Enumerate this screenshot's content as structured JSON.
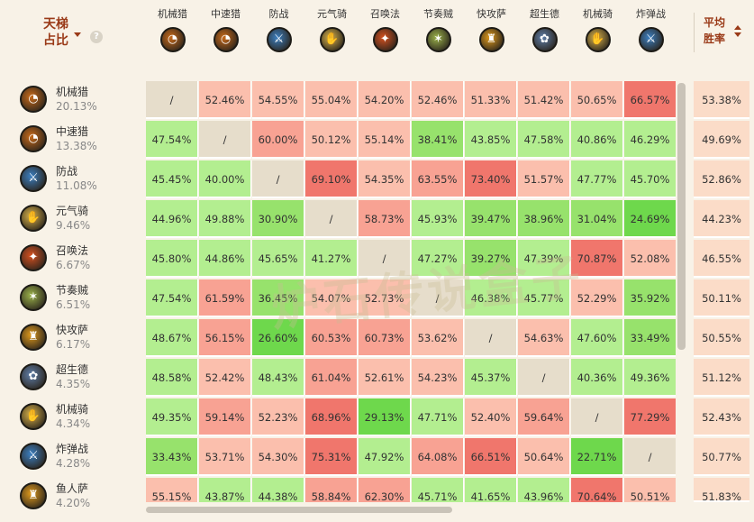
{
  "header": {
    "corner_title": "天梯占比",
    "help_symbol": "?",
    "avg_title": "平均胜率"
  },
  "decks": [
    {
      "name": "机械猎",
      "icon": "hunter-icon",
      "color": "#c86a1a",
      "glyph": "◔"
    },
    {
      "name": "中速猎",
      "icon": "hunter-icon",
      "color": "#c86a1a",
      "glyph": "◔"
    },
    {
      "name": "防战",
      "icon": "warrior-sword-icon",
      "color": "#3b7fc1",
      "glyph": "⚔"
    },
    {
      "name": "元气骑",
      "icon": "paladin-icon",
      "color": "#d8b24a",
      "glyph": "✋"
    },
    {
      "name": "召唤法",
      "icon": "mage-fire-icon",
      "color": "#d5501f",
      "glyph": "✦"
    },
    {
      "name": "节奏贼",
      "icon": "rogue-icon",
      "color": "#9bb24a",
      "glyph": "✶"
    },
    {
      "name": "快攻萨",
      "icon": "shaman-totem-icon",
      "color": "#e09a1c",
      "glyph": "♜"
    },
    {
      "name": "超生德",
      "icon": "druid-icon",
      "color": "#5f7ea8",
      "glyph": "✿"
    },
    {
      "name": "机械骑",
      "icon": "paladin-icon",
      "color": "#d8b24a",
      "glyph": "✋"
    },
    {
      "name": "炸弹战",
      "icon": "warrior-sword-icon",
      "color": "#3b7fc1",
      "glyph": "⚔"
    }
  ],
  "rows": [
    {
      "name": "机械猎",
      "share": "20.13%",
      "icon": "hunter-icon",
      "color": "#c86a1a",
      "glyph": "◔",
      "avg": "53.38%",
      "cells": [
        "/",
        "52.46%",
        "54.55%",
        "55.04%",
        "54.20%",
        "52.46%",
        "51.33%",
        "51.42%",
        "50.65%",
        "66.57%"
      ]
    },
    {
      "name": "中速猎",
      "share": "13.38%",
      "icon": "hunter-icon",
      "color": "#c86a1a",
      "glyph": "◔",
      "avg": "49.69%",
      "cells": [
        "47.54%",
        "/",
        "60.00%",
        "50.12%",
        "55.14%",
        "38.41%",
        "43.85%",
        "47.58%",
        "40.86%",
        "46.29%"
      ]
    },
    {
      "name": "防战",
      "share": "11.08%",
      "icon": "warrior-sword-icon",
      "color": "#3b7fc1",
      "glyph": "⚔",
      "avg": "52.86%",
      "cells": [
        "45.45%",
        "40.00%",
        "/",
        "69.10%",
        "54.35%",
        "63.55%",
        "73.40%",
        "51.57%",
        "47.77%",
        "45.70%"
      ]
    },
    {
      "name": "元气骑",
      "share": "9.46%",
      "icon": "paladin-icon",
      "color": "#d8b24a",
      "glyph": "✋",
      "avg": "44.23%",
      "cells": [
        "44.96%",
        "49.88%",
        "30.90%",
        "/",
        "58.73%",
        "45.93%",
        "39.47%",
        "38.96%",
        "31.04%",
        "24.69%"
      ]
    },
    {
      "name": "召唤法",
      "share": "6.67%",
      "icon": "mage-fire-icon",
      "color": "#d5501f",
      "glyph": "✦",
      "avg": "46.55%",
      "cells": [
        "45.80%",
        "44.86%",
        "45.65%",
        "41.27%",
        "/",
        "47.27%",
        "39.27%",
        "47.39%",
        "70.87%",
        "52.08%"
      ]
    },
    {
      "name": "节奏贼",
      "share": "6.51%",
      "icon": "rogue-icon",
      "color": "#9bb24a",
      "glyph": "✶",
      "avg": "50.11%",
      "cells": [
        "47.54%",
        "61.59%",
        "36.45%",
        "54.07%",
        "52.73%",
        "/",
        "46.38%",
        "45.77%",
        "52.29%",
        "35.92%"
      ]
    },
    {
      "name": "快攻萨",
      "share": "6.17%",
      "icon": "shaman-totem-icon",
      "color": "#e09a1c",
      "glyph": "♜",
      "avg": "50.55%",
      "cells": [
        "48.67%",
        "56.15%",
        "26.60%",
        "60.53%",
        "60.73%",
        "53.62%",
        "/",
        "54.63%",
        "47.60%",
        "33.49%"
      ]
    },
    {
      "name": "超生德",
      "share": "4.35%",
      "icon": "druid-icon",
      "color": "#5f7ea8",
      "glyph": "✿",
      "avg": "51.12%",
      "cells": [
        "48.58%",
        "52.42%",
        "48.43%",
        "61.04%",
        "52.61%",
        "54.23%",
        "45.37%",
        "/",
        "40.36%",
        "49.36%"
      ]
    },
    {
      "name": "机械骑",
      "share": "4.34%",
      "icon": "paladin-icon",
      "color": "#d8b24a",
      "glyph": "✋",
      "avg": "52.43%",
      "cells": [
        "49.35%",
        "59.14%",
        "52.23%",
        "68.96%",
        "29.13%",
        "47.71%",
        "52.40%",
        "59.64%",
        "/",
        "77.29%"
      ]
    },
    {
      "name": "炸弹战",
      "share": "4.28%",
      "icon": "warrior-sword-icon",
      "color": "#3b7fc1",
      "glyph": "⚔",
      "avg": "50.77%",
      "cells": [
        "33.43%",
        "53.71%",
        "54.30%",
        "75.31%",
        "47.92%",
        "64.08%",
        "66.51%",
        "50.64%",
        "22.71%",
        "/"
      ]
    },
    {
      "name": "鱼人萨",
      "share": "4.20%",
      "icon": "shaman-totem-icon",
      "color": "#e09a1c",
      "glyph": "♜",
      "avg": "51.83%",
      "cells": [
        "55.15%",
        "43.87%",
        "44.38%",
        "58.84%",
        "62.30%",
        "45.71%",
        "41.65%",
        "43.96%",
        "70.64%",
        "50.51%"
      ]
    }
  ],
  "colors": {
    "self": "#e6ddcb",
    "high_strong": "#f0766c",
    "high_mid": "#f8a293",
    "high_light": "#fbbfad",
    "low_light": "#b3ee90",
    "low_mid": "#97e26c",
    "low_strong": "#6ed84c"
  },
  "watermark": "炉石传说盒子"
}
